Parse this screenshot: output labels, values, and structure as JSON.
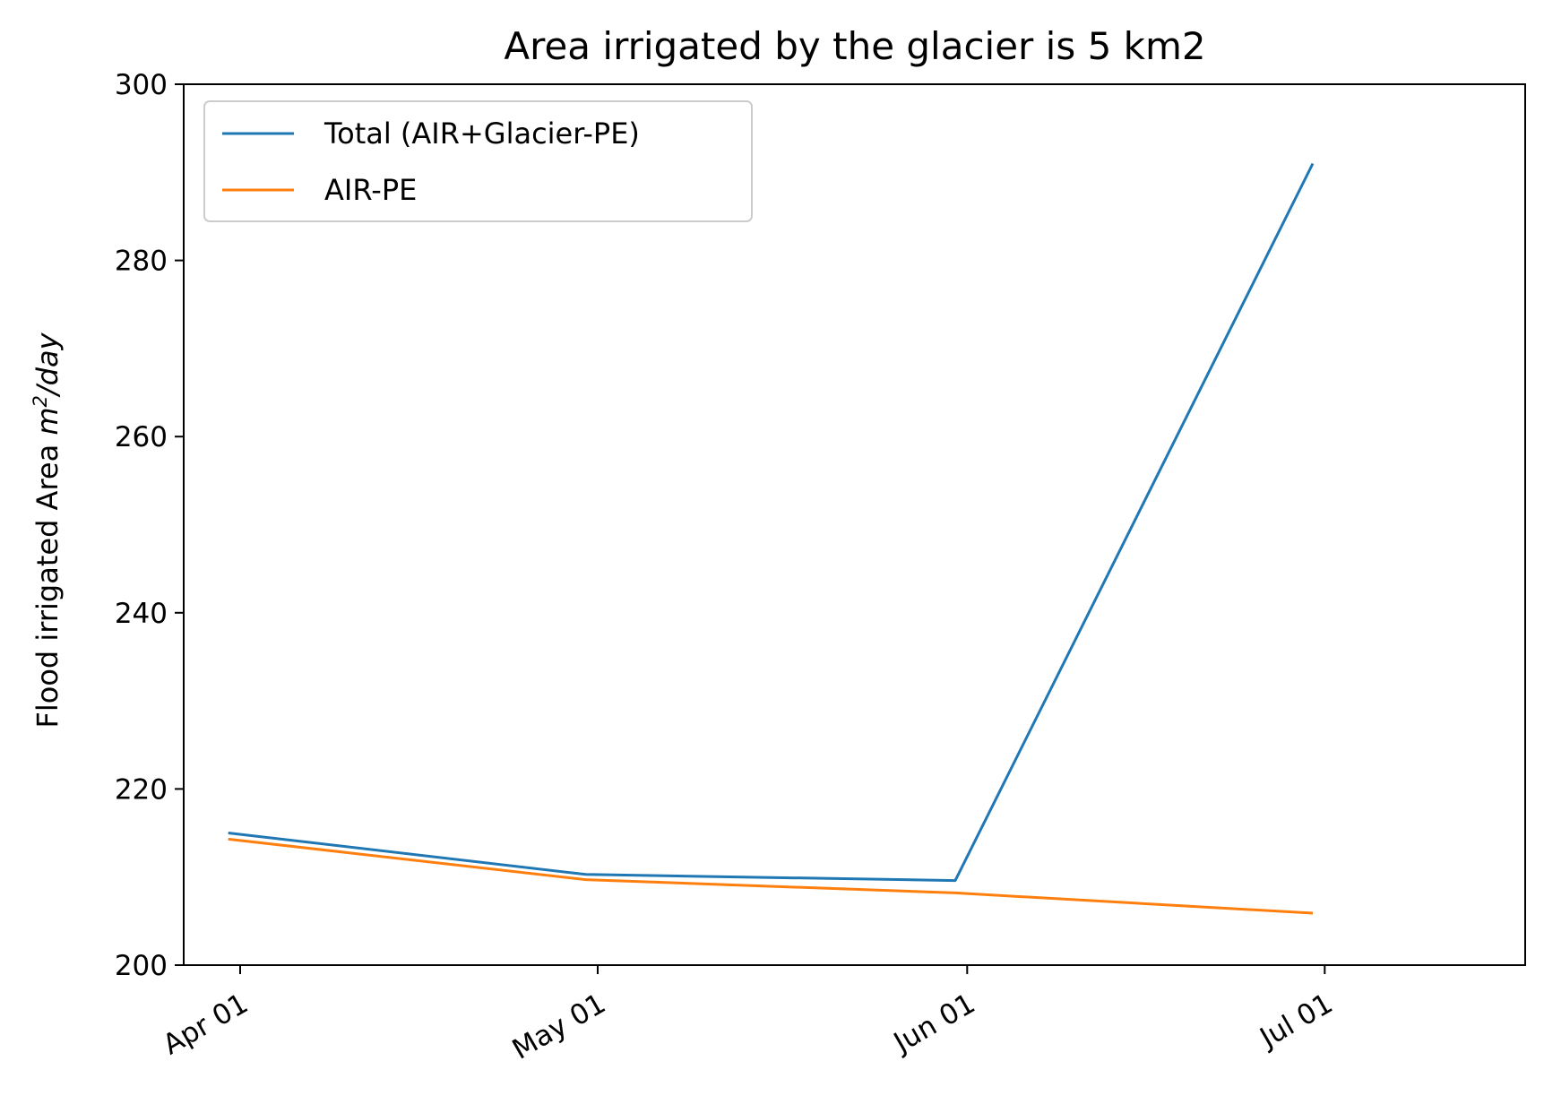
{
  "chart_data": {
    "type": "line",
    "title": "Area irrigated by the glacier is 5 km2",
    "xlabel": "",
    "ylabel": {
      "prefix": "Flood irrigated Area ",
      "unit_base": "m",
      "unit_exp": "2",
      "unit_suffix": "/day"
    },
    "x": [
      "03-31",
      "04-30",
      "05-31",
      "06-30"
    ],
    "x_ticks": [
      "04-01",
      "05-01",
      "06-01",
      "07-01"
    ],
    "x_tick_labels": [
      "Apr 01",
      "May 01",
      "Jun 01",
      "Jul 01"
    ],
    "ylim": [
      200,
      300
    ],
    "y_ticks": [
      200,
      220,
      240,
      260,
      280,
      300
    ],
    "grid": false,
    "legend_position": "upper-left",
    "series": [
      {
        "name": "Total (AIR+Glacier-PE)",
        "color": "#1f77b4",
        "values": [
          215.0,
          210.3,
          209.6,
          291.0
        ]
      },
      {
        "name": "AIR-PE",
        "color": "#ff7f0e",
        "values": [
          214.3,
          209.7,
          208.2,
          205.9
        ]
      }
    ]
  }
}
